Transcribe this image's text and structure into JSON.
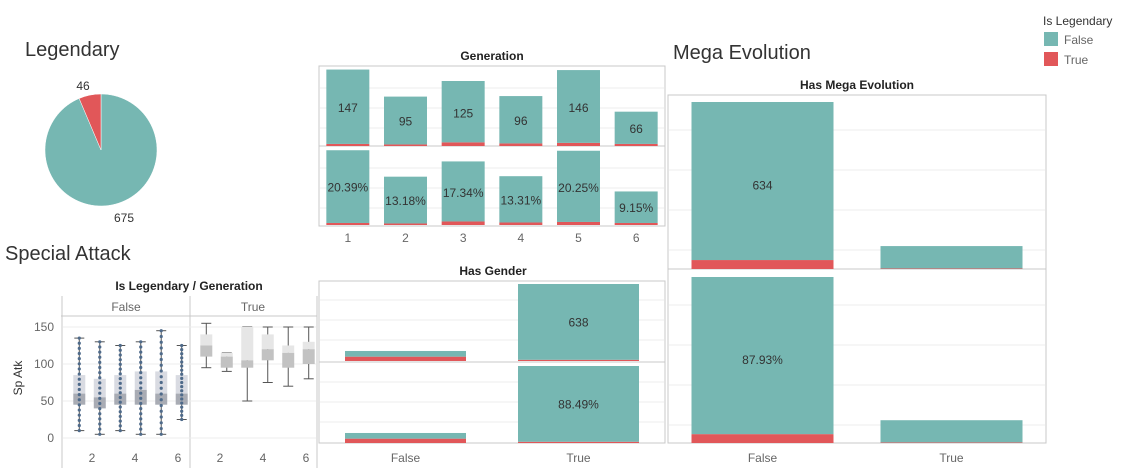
{
  "colors": {
    "false": "#76B7B2",
    "true": "#E15759"
  },
  "legend": {
    "title": "Is Legendary",
    "items": [
      {
        "label": "False",
        "color": "#76B7B2"
      },
      {
        "label": "True",
        "color": "#E15759"
      }
    ]
  },
  "chart_data": [
    {
      "id": "legendary",
      "type": "pie",
      "title": "Legendary",
      "slices": [
        {
          "label": "675",
          "category": "False",
          "value": 675,
          "color": "#76B7B2"
        },
        {
          "label": "46",
          "category": "True",
          "value": 46,
          "color": "#E15759"
        }
      ]
    },
    {
      "id": "generation",
      "type": "bar",
      "title": "Generation",
      "categories": [
        "1",
        "2",
        "3",
        "4",
        "5",
        "6"
      ],
      "series": [
        {
          "name": "False",
          "values": [
            143,
            92,
            118,
            91,
            140,
            62
          ]
        },
        {
          "name": "True",
          "values": [
            4,
            3,
            7,
            5,
            6,
            4
          ]
        }
      ],
      "count_labels": [
        "147",
        "95",
        "125",
        "96",
        "146",
        "66"
      ],
      "percent_labels": [
        "20.39%",
        "13.18%",
        "17.34%",
        "13.31%",
        "20.25%",
        "9.15%"
      ],
      "percent_values": [
        20.39,
        13.18,
        17.34,
        13.31,
        20.25,
        9.15
      ],
      "percent_true": [
        0.55,
        0.42,
        0.97,
        0.69,
        0.83,
        0.55
      ],
      "ylim_count": [
        0,
        150
      ],
      "ylim_percent": [
        0,
        21
      ]
    },
    {
      "id": "has_gender",
      "type": "bar",
      "title": "Has Gender",
      "categories": [
        "False",
        "True"
      ],
      "series": [
        {
          "name": "False",
          "values": [
            47,
            628
          ]
        },
        {
          "name": "True",
          "values": [
            36,
            10
          ]
        }
      ],
      "count_labels": [
        "",
        "638"
      ],
      "percent_labels": [
        "",
        "88.49%"
      ],
      "percent_values": [
        11.51,
        88.49
      ],
      "percent_true": [
        5.0,
        1.39
      ],
      "ylim_count": [
        0,
        700
      ],
      "ylim_percent": [
        0,
        100
      ]
    },
    {
      "id": "mega_evolution",
      "type": "bar",
      "title": "Mega Evolution",
      "subtitle": "Has Mega Evolution",
      "categories": [
        "False",
        "True"
      ],
      "series": [
        {
          "name": "False",
          "values": [
            600,
            85
          ]
        },
        {
          "name": "True",
          "values": [
            34,
            2
          ]
        }
      ],
      "count_labels": [
        "634",
        ""
      ],
      "percent_labels": [
        "87.93%",
        ""
      ],
      "percent_values": [
        87.93,
        12.07
      ],
      "percent_true": [
        4.7,
        0.3
      ],
      "ylim_count": [
        0,
        634
      ],
      "ylim_percent": [
        0,
        88
      ]
    },
    {
      "id": "special_attack",
      "type": "boxplot",
      "title": "Special Attack",
      "subtitle": "Is Legendary / Generation",
      "ylabel": "Sp Atk",
      "yticks": [
        0,
        50,
        100,
        150
      ],
      "ylim": [
        -5,
        170
      ],
      "groups": [
        "False",
        "True"
      ],
      "xticks": [
        "2",
        "4",
        "6"
      ],
      "boxes": [
        {
          "group": "False",
          "gen": 1,
          "min": 10,
          "q1": 45,
          "median": 60,
          "q3": 85,
          "max": 135
        },
        {
          "group": "False",
          "gen": 2,
          "min": 5,
          "q1": 40,
          "median": 55,
          "q3": 80,
          "max": 130
        },
        {
          "group": "False",
          "gen": 3,
          "min": 10,
          "q1": 45,
          "median": 60,
          "q3": 85,
          "max": 125
        },
        {
          "group": "False",
          "gen": 4,
          "min": 5,
          "q1": 45,
          "median": 65,
          "q3": 90,
          "max": 130
        },
        {
          "group": "False",
          "gen": 5,
          "min": 5,
          "q1": 45,
          "median": 60,
          "q3": 90,
          "max": 145
        },
        {
          "group": "False",
          "gen": 6,
          "min": 25,
          "q1": 45,
          "median": 60,
          "q3": 85,
          "max": 125
        },
        {
          "group": "True",
          "gen": 1,
          "min": 95,
          "q1": 110,
          "median": 125,
          "q3": 140,
          "max": 155
        },
        {
          "group": "True",
          "gen": 2,
          "min": 90,
          "q1": 95,
          "median": 110,
          "q3": 115,
          "max": 115
        },
        {
          "group": "True",
          "gen": 3,
          "min": 50,
          "q1": 95,
          "median": 105,
          "q3": 150,
          "max": 150
        },
        {
          "group": "True",
          "gen": 4,
          "min": 75,
          "q1": 105,
          "median": 120,
          "q3": 140,
          "max": 150
        },
        {
          "group": "True",
          "gen": 5,
          "min": 70,
          "q1": 95,
          "median": 115,
          "q3": 125,
          "max": 150
        },
        {
          "group": "True",
          "gen": 6,
          "min": 80,
          "q1": 100,
          "median": 120,
          "q3": 130,
          "max": 150
        }
      ]
    }
  ]
}
